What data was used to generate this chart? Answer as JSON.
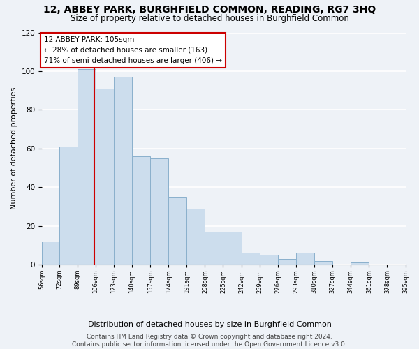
{
  "title": "12, ABBEY PARK, BURGHFIELD COMMON, READING, RG7 3HQ",
  "subtitle": "Size of property relative to detached houses in Burghfield Common",
  "xlabel": "Distribution of detached houses by size in Burghfield Common",
  "ylabel": "Number of detached properties",
  "bar_color": "#ccdded",
  "bar_edge_color": "#8ab0cc",
  "bins": [
    56,
    72,
    89,
    106,
    123,
    140,
    157,
    174,
    191,
    208,
    225,
    242,
    259,
    276,
    293,
    310,
    327,
    344,
    361,
    378,
    395
  ],
  "counts": [
    12,
    61,
    101,
    91,
    97,
    56,
    55,
    35,
    29,
    17,
    17,
    6,
    5,
    3,
    6,
    2,
    0,
    1,
    0,
    0
  ],
  "property_size": 105,
  "vline_color": "#cc0000",
  "annotation_line1": "12 ABBEY PARK: 105sqm",
  "annotation_line2": "← 28% of detached houses are smaller (163)",
  "annotation_line3": "71% of semi-detached houses are larger (406) →",
  "annotation_box_color": "#ffffff",
  "annotation_box_edge_color": "#cc0000",
  "tick_labels": [
    "56sqm",
    "72sqm",
    "89sqm",
    "106sqm",
    "123sqm",
    "140sqm",
    "157sqm",
    "174sqm",
    "191sqm",
    "208sqm",
    "225sqm",
    "242sqm",
    "259sqm",
    "276sqm",
    "293sqm",
    "310sqm",
    "327sqm",
    "344sqm",
    "361sqm",
    "378sqm",
    "395sqm"
  ],
  "ylim": [
    0,
    120
  ],
  "yticks": [
    0,
    20,
    40,
    60,
    80,
    100,
    120
  ],
  "footnote": "Contains HM Land Registry data © Crown copyright and database right 2024.\nContains public sector information licensed under the Open Government Licence v3.0.",
  "background_color": "#eef2f7",
  "grid_color": "#ffffff",
  "title_fontsize": 10,
  "subtitle_fontsize": 8.5,
  "xlabel_fontsize": 8,
  "ylabel_fontsize": 8,
  "tick_fontsize": 6,
  "footnote_fontsize": 6.5,
  "annotation_fontsize": 7.5
}
